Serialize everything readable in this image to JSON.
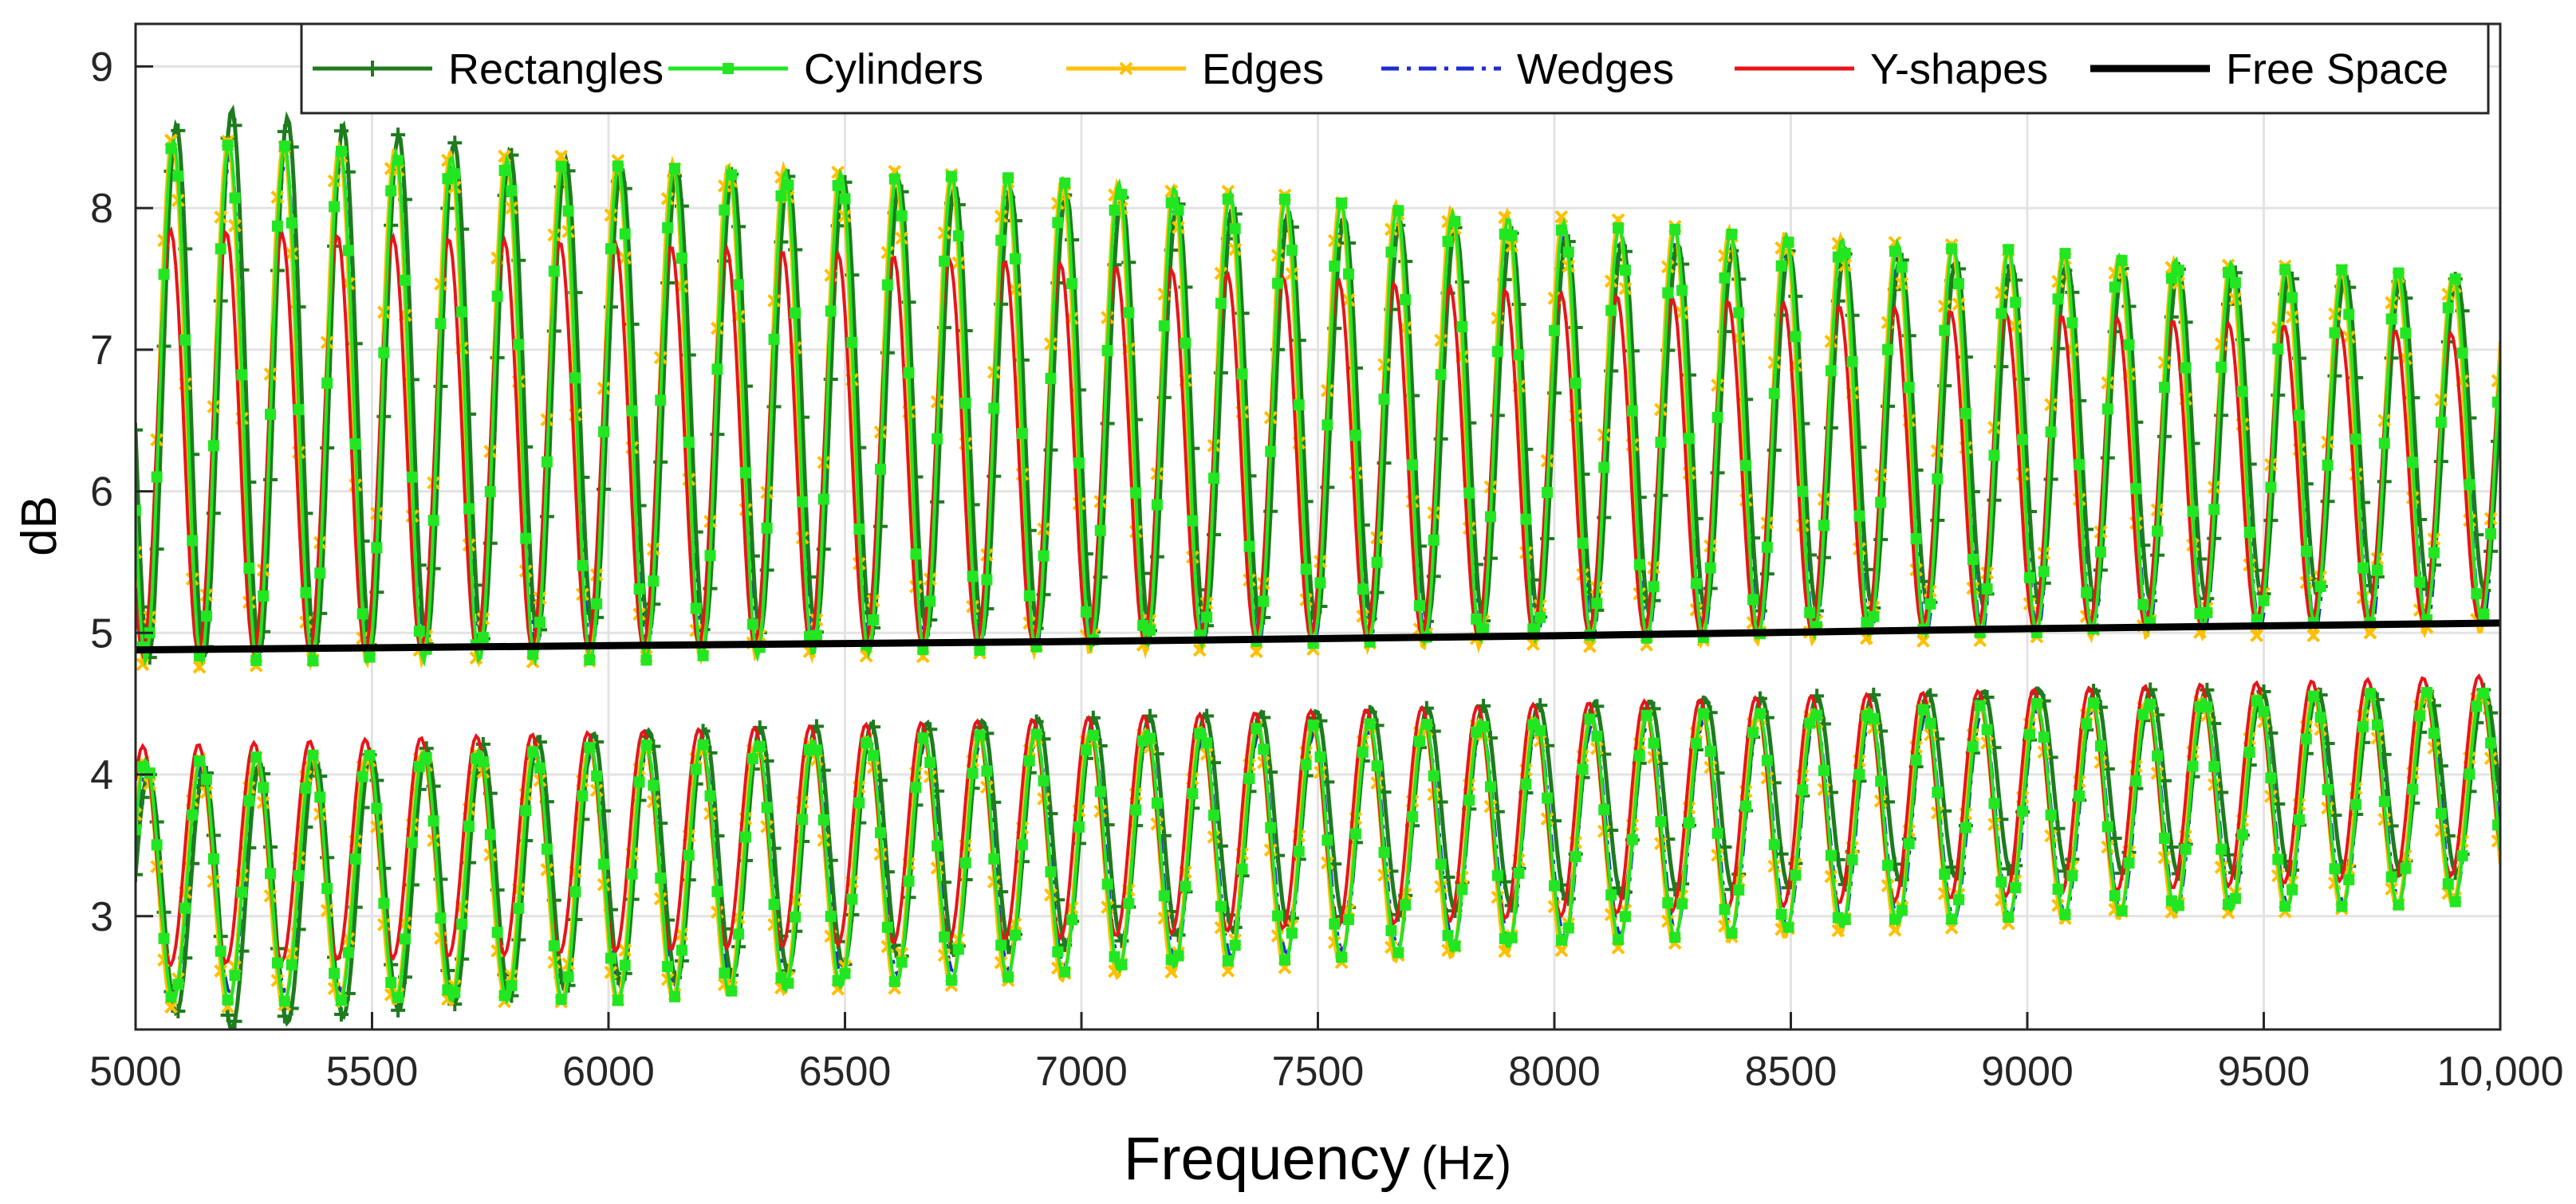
{
  "chart_data": {
    "type": "line",
    "title": "",
    "xlabel": "Frequency",
    "xlabel_unit": "(Hz)",
    "ylabel": "dB",
    "xlim": [
      5000,
      10000
    ],
    "ylim": [
      2.2,
      9.3
    ],
    "grid": true,
    "legend_position": "top",
    "x_ticks": [
      5000,
      5500,
      6000,
      6500,
      7000,
      7500,
      8000,
      8500,
      9000,
      9500,
      10000
    ],
    "x_tick_labels": [
      "5000",
      "5500",
      "6000",
      "6500",
      "7000",
      "7500",
      "8000",
      "8500",
      "9000",
      "9500",
      "10,000"
    ],
    "y_ticks": [
      3,
      4,
      5,
      6,
      7,
      8,
      9
    ],
    "y_tick_labels": [
      "3",
      "4",
      "5",
      "6",
      "7",
      "8",
      "9"
    ],
    "oscillation": {
      "period_hz": 117.6,
      "first_peak_hz": 5080,
      "sample_step_hz": 5
    },
    "series": [
      {
        "name": "Rectangles",
        "color": "#1e7b1e",
        "dash": "solid",
        "marker": "plus",
        "upper_peak": [
          [
            5000,
            8.5
          ],
          [
            5200,
            8.7
          ],
          [
            6000,
            8.3
          ],
          [
            7000,
            8.1
          ],
          [
            8000,
            7.8
          ],
          [
            9000,
            7.6
          ],
          [
            10000,
            7.5
          ]
        ],
        "upper_trough": [
          [
            5000,
            4.8
          ],
          [
            6000,
            5.0
          ],
          [
            7000,
            5.0
          ],
          [
            8000,
            5.1
          ],
          [
            9000,
            5.2
          ],
          [
            10000,
            5.3
          ]
        ],
        "lower_peak": [
          [
            5000,
            4.0
          ],
          [
            6000,
            4.3
          ],
          [
            7000,
            4.4
          ],
          [
            8000,
            4.5
          ],
          [
            9000,
            4.6
          ],
          [
            10000,
            4.6
          ]
        ],
        "lower_trough": [
          [
            5000,
            2.4
          ],
          [
            5200,
            2.2
          ],
          [
            6000,
            2.5
          ],
          [
            7000,
            2.8
          ],
          [
            8000,
            3.1
          ],
          [
            9000,
            3.3
          ],
          [
            10000,
            3.3
          ]
        ]
      },
      {
        "name": "Cylinders",
        "color": "#22e622",
        "dash": "solid",
        "marker": "square",
        "upper_peak": [
          [
            5000,
            8.5
          ],
          [
            6000,
            8.3
          ],
          [
            7000,
            8.2
          ],
          [
            8000,
            7.9
          ],
          [
            9000,
            7.7
          ],
          [
            10000,
            7.5
          ]
        ],
        "upper_trough": [
          [
            5000,
            4.8
          ],
          [
            6000,
            4.8
          ],
          [
            7000,
            4.9
          ],
          [
            8000,
            4.95
          ],
          [
            9000,
            5.0
          ],
          [
            10000,
            5.1
          ]
        ],
        "lower_peak": [
          [
            5000,
            4.1
          ],
          [
            6000,
            4.2
          ],
          [
            7000,
            4.3
          ],
          [
            8000,
            4.4
          ],
          [
            9000,
            4.5
          ],
          [
            10000,
            4.6
          ]
        ],
        "lower_trough": [
          [
            5000,
            2.4
          ],
          [
            6000,
            2.4
          ],
          [
            7000,
            2.6
          ],
          [
            8000,
            2.8
          ],
          [
            9000,
            3.0
          ],
          [
            10000,
            3.1
          ]
        ]
      },
      {
        "name": "Edges",
        "color": "#ffc000",
        "dash": "solid",
        "marker": "x",
        "upper_peak": [
          [
            5000,
            8.5
          ],
          [
            6000,
            8.35
          ],
          [
            7000,
            8.2
          ],
          [
            8000,
            7.95
          ],
          [
            9000,
            7.7
          ],
          [
            10000,
            7.5
          ]
        ],
        "upper_trough": [
          [
            5000,
            4.75
          ],
          [
            6000,
            4.8
          ],
          [
            7000,
            4.85
          ],
          [
            8000,
            4.9
          ],
          [
            9000,
            4.95
          ],
          [
            10000,
            5.0
          ]
        ],
        "lower_peak": [
          [
            5000,
            4.1
          ],
          [
            6000,
            4.2
          ],
          [
            7000,
            4.3
          ],
          [
            8000,
            4.4
          ],
          [
            9000,
            4.5
          ],
          [
            10000,
            4.6
          ]
        ],
        "lower_trough": [
          [
            5000,
            2.35
          ],
          [
            6000,
            2.4
          ],
          [
            7000,
            2.55
          ],
          [
            8000,
            2.75
          ],
          [
            9000,
            2.95
          ],
          [
            10000,
            3.1
          ]
        ]
      },
      {
        "name": "Wedges",
        "color": "#1f2ccf",
        "dash": "dashdot",
        "marker": "none",
        "upper_peak": [
          [
            5000,
            8.4
          ],
          [
            6000,
            8.25
          ],
          [
            7000,
            8.05
          ],
          [
            8000,
            7.8
          ],
          [
            9000,
            7.6
          ],
          [
            10000,
            7.45
          ]
        ],
        "upper_trough": [
          [
            5000,
            4.8
          ],
          [
            6000,
            4.85
          ],
          [
            7000,
            4.9
          ],
          [
            8000,
            4.95
          ],
          [
            9000,
            5.0
          ],
          [
            10000,
            5.05
          ]
        ],
        "lower_peak": [
          [
            5000,
            4.05
          ],
          [
            6000,
            4.15
          ],
          [
            7000,
            4.25
          ],
          [
            8000,
            4.35
          ],
          [
            9000,
            4.45
          ],
          [
            10000,
            4.55
          ]
        ],
        "lower_trough": [
          [
            5000,
            2.45
          ],
          [
            6000,
            2.5
          ],
          [
            7000,
            2.65
          ],
          [
            8000,
            2.85
          ],
          [
            9000,
            3.0
          ],
          [
            10000,
            3.15
          ]
        ]
      },
      {
        "name": "Y-shapes",
        "color": "#e8141a",
        "dash": "solid",
        "marker": "none",
        "upper_peak": [
          [
            5000,
            7.85
          ],
          [
            6000,
            7.75
          ],
          [
            7000,
            7.6
          ],
          [
            8000,
            7.4
          ],
          [
            9000,
            7.25
          ],
          [
            10000,
            7.1
          ]
        ],
        "upper_trough": [
          [
            5000,
            4.85
          ],
          [
            6000,
            4.9
          ],
          [
            7000,
            4.95
          ],
          [
            8000,
            5.0
          ],
          [
            9000,
            5.05
          ],
          [
            10000,
            5.1
          ]
        ],
        "lower_peak": [
          [
            5000,
            4.2
          ],
          [
            6000,
            4.3
          ],
          [
            7000,
            4.4
          ],
          [
            8000,
            4.5
          ],
          [
            9000,
            4.6
          ],
          [
            10000,
            4.7
          ]
        ],
        "lower_trough": [
          [
            5000,
            2.65
          ],
          [
            6000,
            2.75
          ],
          [
            7000,
            2.85
          ],
          [
            8000,
            3.0
          ],
          [
            9000,
            3.15
          ],
          [
            10000,
            3.3
          ]
        ]
      },
      {
        "name": "Free Space",
        "color": "#000000",
        "dash": "solid",
        "marker": "none",
        "line": [
          [
            5000,
            4.88
          ],
          [
            6000,
            4.91
          ],
          [
            7000,
            4.94
          ],
          [
            8000,
            4.98
          ],
          [
            9000,
            5.03
          ],
          [
            10000,
            5.07
          ]
        ]
      }
    ]
  }
}
